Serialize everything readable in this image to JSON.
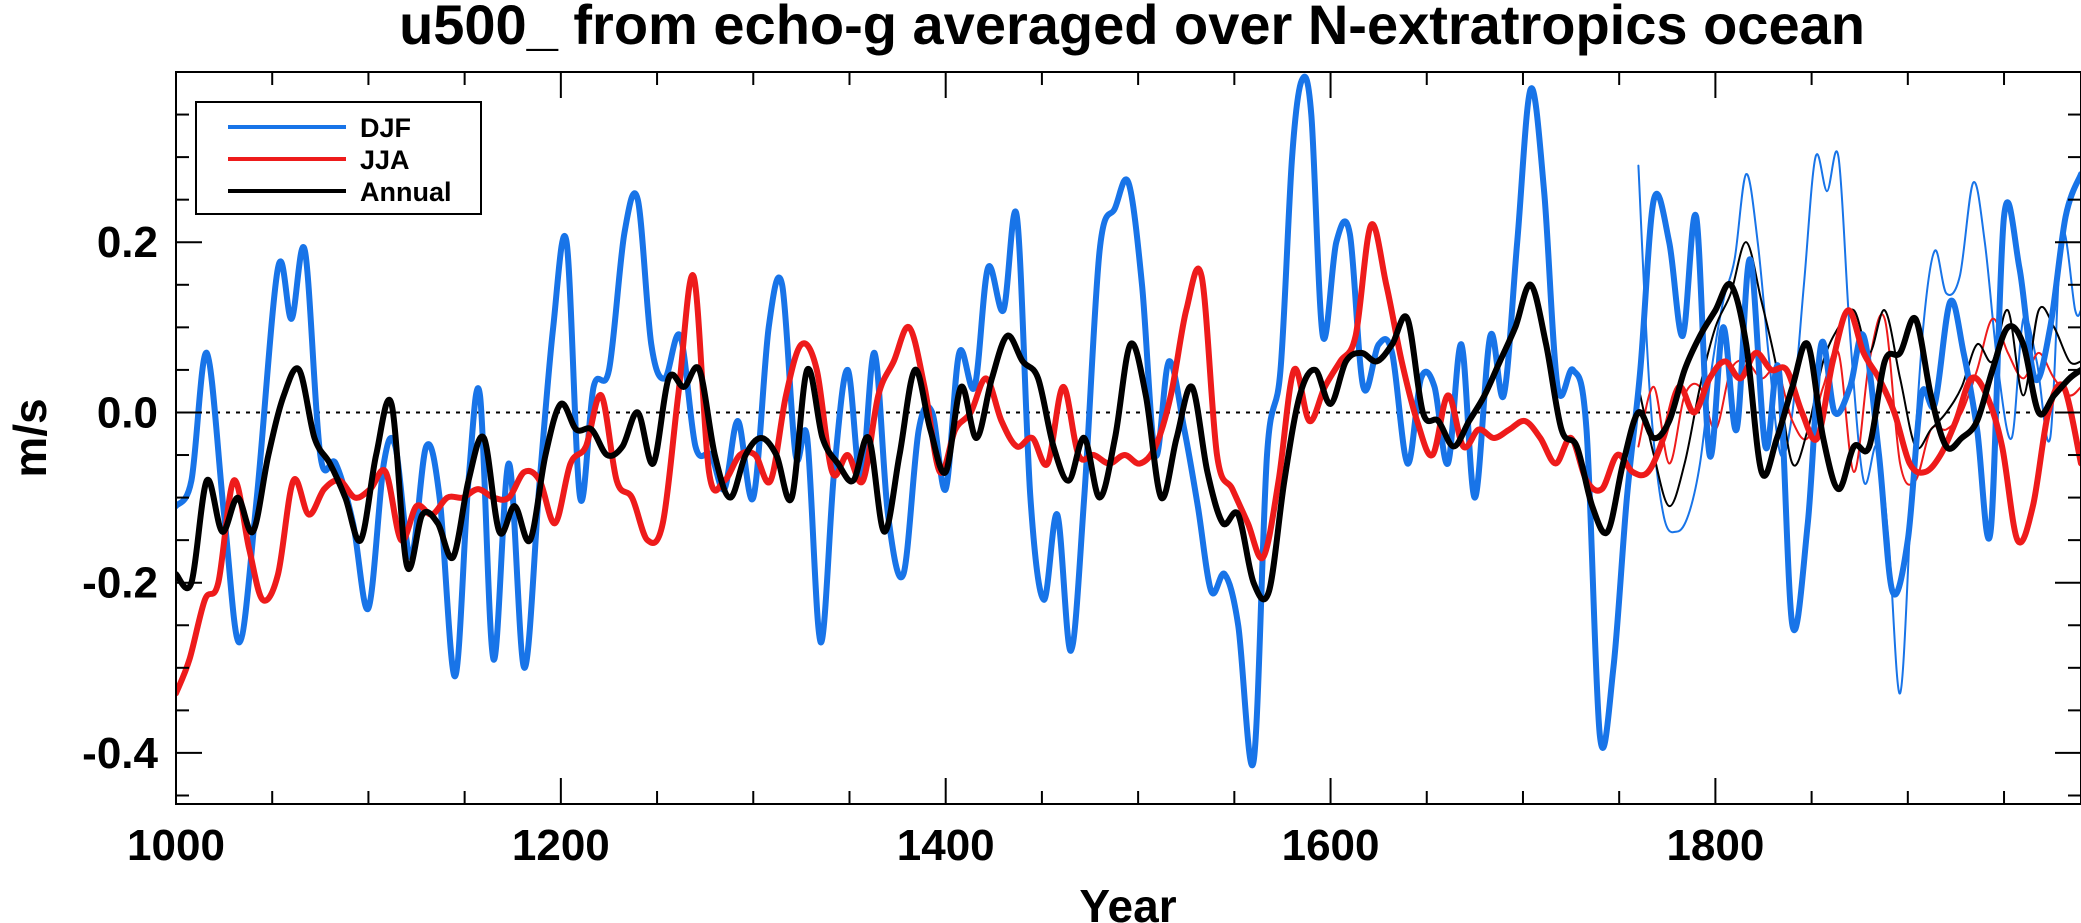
{
  "chart_data": {
    "type": "line",
    "title": "u500_ from echo-g averaged over N-extratropics ocean",
    "xlabel": "Year",
    "ylabel": "m/s",
    "xlim": [
      1000,
      1990
    ],
    "ylim": [
      -0.46,
      0.4
    ],
    "xticks": [
      1000,
      1200,
      1400,
      1600,
      1800
    ],
    "xtick_labels": [
      "1000",
      "1200",
      "1400",
      "1600",
      "1800"
    ],
    "yticks": [
      0.2,
      0.0,
      -0.2,
      -0.4
    ],
    "ytick_labels": [
      "0.2",
      "0.0",
      "-0.2",
      "-0.4"
    ],
    "zero_line": true,
    "legend": {
      "position": "top-left",
      "entries": [
        "DJF",
        "JJA",
        "Annual"
      ]
    },
    "series": [
      {
        "name": "DJF",
        "color": "#1874e8",
        "style": "thick",
        "x": [
          1000,
          1008,
          1016,
          1025,
          1033,
          1042,
          1053,
          1060,
          1067,
          1075,
          1083,
          1092,
          1100,
          1108,
          1114,
          1122,
          1130,
          1137,
          1145,
          1152,
          1158,
          1165,
          1173,
          1181,
          1189,
          1196,
          1203,
          1210,
          1217,
          1225,
          1233,
          1240,
          1247,
          1254,
          1262,
          1270,
          1278,
          1285,
          1292,
          1300,
          1308,
          1315,
          1322,
          1328,
          1335,
          1342,
          1349,
          1356,
          1363,
          1370,
          1378,
          1386,
          1393,
          1400,
          1407,
          1415,
          1422,
          1430,
          1437,
          1444,
          1451,
          1458,
          1465,
          1472,
          1480,
          1488,
          1495,
          1502,
          1509,
          1516,
          1524,
          1531,
          1538,
          1545,
          1552,
          1560,
          1567,
          1574,
          1580,
          1585,
          1590,
          1596,
          1603,
          1610,
          1617,
          1625,
          1632,
          1640,
          1647,
          1654,
          1661,
          1668,
          1675,
          1683,
          1690,
          1697,
          1704,
          1711,
          1718,
          1726,
          1733,
          1740,
          1747,
          1754,
          1761,
          1768,
          1776,
          1783,
          1790,
          1797,
          1804,
          1811,
          1818,
          1826,
          1833,
          1840,
          1848,
          1855,
          1862,
          1870,
          1877,
          1885,
          1892,
          1900,
          1907,
          1914,
          1922,
          1929,
          1936,
          1943,
          1950,
          1958,
          1966,
          1974,
          1982,
          1990
        ],
        "values": [
          -0.11,
          -0.08,
          0.07,
          -0.12,
          -0.27,
          -0.1,
          0.17,
          0.11,
          0.19,
          -0.05,
          -0.06,
          -0.13,
          -0.23,
          -0.06,
          -0.04,
          -0.17,
          -0.04,
          -0.1,
          -0.31,
          -0.08,
          0.02,
          -0.29,
          -0.06,
          -0.3,
          -0.08,
          0.1,
          0.2,
          -0.1,
          0.03,
          0.05,
          0.21,
          0.25,
          0.08,
          0.04,
          0.09,
          -0.04,
          -0.05,
          -0.09,
          -0.01,
          -0.1,
          0.1,
          0.15,
          -0.05,
          -0.03,
          -0.27,
          -0.07,
          0.05,
          -0.08,
          0.07,
          -0.12,
          -0.19,
          -0.02,
          0.0,
          -0.09,
          0.07,
          0.03,
          0.17,
          0.12,
          0.23,
          -0.1,
          -0.22,
          -0.12,
          -0.28,
          -0.1,
          0.19,
          0.24,
          0.27,
          0.15,
          -0.05,
          0.06,
          -0.02,
          -0.11,
          -0.21,
          -0.19,
          -0.25,
          -0.41,
          -0.05,
          0.05,
          0.3,
          0.39,
          0.35,
          0.09,
          0.2,
          0.21,
          0.03,
          0.08,
          0.07,
          -0.06,
          0.04,
          0.03,
          -0.06,
          0.08,
          -0.1,
          0.09,
          0.02,
          0.2,
          0.38,
          0.26,
          0.03,
          0.05,
          -0.02,
          -0.38,
          -0.3,
          -0.1,
          0.05,
          0.25,
          0.2,
          0.09,
          0.23,
          -0.05,
          0.1,
          -0.02,
          0.18,
          -0.04,
          0.05,
          -0.25,
          -0.13,
          0.08,
          0.0,
          0.03,
          0.09,
          -0.05,
          -0.21,
          -0.15,
          0.02,
          0.01,
          0.13,
          0.07,
          -0.02,
          -0.14,
          0.23,
          0.17,
          0.04,
          0.1,
          0.23,
          0.28
        ]
      },
      {
        "name": "JJA",
        "color": "#ee1b1b",
        "style": "thick",
        "x": [
          1000,
          1007,
          1015,
          1022,
          1030,
          1038,
          1045,
          1053,
          1061,
          1069,
          1077,
          1085,
          1093,
          1101,
          1109,
          1117,
          1125,
          1133,
          1141,
          1149,
          1157,
          1165,
          1173,
          1181,
          1189,
          1197,
          1205,
          1213,
          1221,
          1229,
          1237,
          1245,
          1253,
          1261,
          1269,
          1277,
          1285,
          1293,
          1301,
          1309,
          1317,
          1325,
          1333,
          1341,
          1349,
          1357,
          1365,
          1373,
          1381,
          1389,
          1397,
          1405,
          1413,
          1421,
          1429,
          1437,
          1445,
          1453,
          1461,
          1469,
          1477,
          1485,
          1493,
          1501,
          1509,
          1517,
          1525,
          1533,
          1541,
          1549,
          1557,
          1565,
          1573,
          1581,
          1589,
          1597,
          1605,
          1613,
          1621,
          1629,
          1637,
          1645,
          1653,
          1661,
          1669,
          1677,
          1685,
          1693,
          1701,
          1709,
          1717,
          1725,
          1733,
          1741,
          1749,
          1757,
          1765,
          1773,
          1781,
          1789,
          1797,
          1805,
          1813,
          1821,
          1829,
          1837,
          1845,
          1853,
          1861,
          1869,
          1877,
          1885,
          1893,
          1901,
          1909,
          1917,
          1925,
          1933,
          1941,
          1949,
          1957,
          1965,
          1973,
          1981,
          1990
        ],
        "values": [
          -0.33,
          -0.29,
          -0.22,
          -0.2,
          -0.08,
          -0.16,
          -0.22,
          -0.19,
          -0.08,
          -0.12,
          -0.09,
          -0.08,
          -0.1,
          -0.09,
          -0.07,
          -0.15,
          -0.11,
          -0.12,
          -0.1,
          -0.1,
          -0.09,
          -0.1,
          -0.1,
          -0.07,
          -0.08,
          -0.13,
          -0.06,
          -0.04,
          0.02,
          -0.08,
          -0.1,
          -0.15,
          -0.13,
          0.02,
          0.16,
          -0.07,
          -0.08,
          -0.05,
          -0.05,
          -0.08,
          0.02,
          0.08,
          0.05,
          -0.07,
          -0.05,
          -0.08,
          0.02,
          0.06,
          0.1,
          0.03,
          -0.07,
          -0.02,
          0.0,
          0.04,
          -0.01,
          -0.04,
          -0.03,
          -0.06,
          0.03,
          -0.05,
          -0.05,
          -0.06,
          -0.05,
          -0.06,
          -0.04,
          0.02,
          0.12,
          0.16,
          -0.05,
          -0.09,
          -0.13,
          -0.17,
          -0.08,
          0.05,
          -0.01,
          0.03,
          0.06,
          0.09,
          0.22,
          0.15,
          0.06,
          -0.01,
          -0.05,
          0.02,
          -0.04,
          -0.02,
          -0.03,
          -0.02,
          -0.01,
          -0.03,
          -0.06,
          -0.03,
          -0.08,
          -0.09,
          -0.05,
          -0.07,
          -0.07,
          -0.03,
          0.03,
          0.0,
          0.04,
          0.06,
          0.04,
          0.07,
          0.05,
          0.05,
          0.0,
          -0.03,
          0.06,
          0.12,
          0.07,
          0.04,
          0.0,
          -0.06,
          -0.07,
          -0.05,
          -0.01,
          0.04,
          0.02,
          -0.04,
          -0.15,
          -0.11,
          0.0,
          0.03,
          -0.06
        ]
      },
      {
        "name": "Annual",
        "color": "#000000",
        "style": "thick",
        "x": [
          1000,
          1008,
          1016,
          1024,
          1032,
          1040,
          1048,
          1056,
          1064,
          1072,
          1080,
          1088,
          1096,
          1104,
          1112,
          1120,
          1128,
          1136,
          1144,
          1152,
          1160,
          1168,
          1176,
          1184,
          1192,
          1200,
          1208,
          1216,
          1224,
          1232,
          1240,
          1248,
          1256,
          1264,
          1272,
          1280,
          1288,
          1296,
          1304,
          1312,
          1320,
          1328,
          1336,
          1344,
          1352,
          1360,
          1368,
          1376,
          1384,
          1392,
          1400,
          1408,
          1416,
          1424,
          1432,
          1440,
          1448,
          1456,
          1464,
          1472,
          1480,
          1488,
          1496,
          1504,
          1512,
          1520,
          1528,
          1536,
          1544,
          1552,
          1560,
          1568,
          1576,
          1584,
          1592,
          1600,
          1608,
          1616,
          1624,
          1632,
          1640,
          1648,
          1656,
          1664,
          1672,
          1680,
          1688,
          1696,
          1704,
          1712,
          1720,
          1728,
          1736,
          1744,
          1752,
          1760,
          1768,
          1776,
          1784,
          1792,
          1800,
          1808,
          1816,
          1824,
          1832,
          1840,
          1848,
          1856,
          1864,
          1872,
          1880,
          1888,
          1896,
          1904,
          1912,
          1920,
          1928,
          1936,
          1944,
          1952,
          1960,
          1968,
          1976,
          1984,
          1990
        ],
        "values": [
          -0.19,
          -0.2,
          -0.08,
          -0.14,
          -0.1,
          -0.14,
          -0.05,
          0.02,
          0.05,
          -0.03,
          -0.06,
          -0.1,
          -0.15,
          -0.05,
          0.01,
          -0.18,
          -0.12,
          -0.13,
          -0.17,
          -0.08,
          -0.03,
          -0.14,
          -0.11,
          -0.15,
          -0.05,
          0.01,
          -0.02,
          -0.02,
          -0.05,
          -0.04,
          0.0,
          -0.06,
          0.04,
          0.03,
          0.05,
          -0.05,
          -0.1,
          -0.05,
          -0.03,
          -0.05,
          -0.1,
          0.05,
          -0.03,
          -0.06,
          -0.08,
          -0.03,
          -0.14,
          -0.05,
          0.05,
          -0.02,
          -0.07,
          0.03,
          -0.03,
          0.04,
          0.09,
          0.06,
          0.04,
          -0.04,
          -0.08,
          -0.03,
          -0.1,
          -0.03,
          0.08,
          0.02,
          -0.1,
          -0.03,
          0.03,
          -0.07,
          -0.13,
          -0.12,
          -0.2,
          -0.21,
          -0.08,
          0.02,
          0.05,
          0.01,
          0.06,
          0.07,
          0.06,
          0.08,
          0.11,
          0.0,
          -0.01,
          -0.04,
          -0.01,
          0.02,
          0.06,
          0.1,
          0.15,
          0.08,
          -0.02,
          -0.04,
          -0.11,
          -0.14,
          -0.06,
          0.0,
          -0.03,
          -0.01,
          0.05,
          0.09,
          0.12,
          0.15,
          0.08,
          -0.07,
          -0.03,
          0.03,
          0.08,
          -0.03,
          -0.09,
          -0.04,
          -0.04,
          0.06,
          0.07,
          0.11,
          0.02,
          -0.04,
          -0.03,
          -0.01,
          0.05,
          0.1,
          0.08,
          0.0,
          0.02,
          0.04,
          0.05
        ]
      },
      {
        "name": "DJF (thin)",
        "color": "#1874e8",
        "style": "thin",
        "x": [
          1760,
          1766,
          1773,
          1780,
          1786,
          1792,
          1798,
          1804,
          1810,
          1816,
          1822,
          1828,
          1834,
          1840,
          1846,
          1852,
          1858,
          1864,
          1870,
          1877,
          1884,
          1890,
          1896,
          1902,
          1908,
          1914,
          1920,
          1927,
          1934,
          1940,
          1947,
          1954,
          1960,
          1967,
          1974,
          1980,
          1987,
          1990
        ],
        "values": [
          0.29,
          0.02,
          -0.12,
          -0.14,
          -0.12,
          -0.06,
          0.05,
          0.13,
          0.18,
          0.28,
          0.2,
          0.06,
          -0.05,
          0.0,
          0.15,
          0.3,
          0.26,
          0.3,
          0.09,
          -0.08,
          -0.04,
          -0.15,
          -0.33,
          -0.1,
          0.1,
          0.19,
          0.14,
          0.16,
          0.27,
          0.2,
          0.05,
          -0.03,
          0.11,
          0.06,
          -0.03,
          0.21,
          0.12,
          0.12
        ]
      },
      {
        "name": "JJA (thin)",
        "color": "#ee1b1b",
        "style": "thin",
        "x": [
          1760,
          1768,
          1776,
          1784,
          1792,
          1800,
          1808,
          1816,
          1824,
          1832,
          1840,
          1848,
          1856,
          1864,
          1872,
          1880,
          1888,
          1896,
          1904,
          1912,
          1920,
          1928,
          1936,
          1944,
          1952,
          1960,
          1968,
          1976,
          1984,
          1990
        ],
        "values": [
          -0.04,
          0.03,
          -0.06,
          0.02,
          0.03,
          -0.02,
          0.05,
          0.06,
          0.04,
          0.05,
          -0.01,
          -0.03,
          0.03,
          0.07,
          -0.07,
          0.06,
          0.11,
          -0.06,
          -0.08,
          -0.02,
          -0.02,
          0.0,
          0.05,
          0.11,
          0.07,
          0.04,
          0.07,
          0.04,
          0.02,
          0.03
        ]
      },
      {
        "name": "Annual (thin)",
        "color": "#000000",
        "style": "thin",
        "x": [
          1760,
          1768,
          1776,
          1784,
          1792,
          1800,
          1808,
          1816,
          1824,
          1832,
          1840,
          1848,
          1856,
          1864,
          1872,
          1880,
          1888,
          1896,
          1904,
          1912,
          1920,
          1928,
          1936,
          1944,
          1952,
          1960,
          1968,
          1976,
          1984,
          1990
        ],
        "values": [
          0.03,
          -0.05,
          -0.11,
          -0.06,
          0.03,
          0.1,
          0.14,
          0.2,
          0.13,
          0.05,
          -0.06,
          -0.02,
          0.06,
          0.1,
          0.12,
          0.07,
          0.12,
          0.04,
          -0.04,
          -0.02,
          0.0,
          0.03,
          0.08,
          0.06,
          0.12,
          0.02,
          0.12,
          0.1,
          0.06,
          0.06
        ]
      }
    ]
  }
}
